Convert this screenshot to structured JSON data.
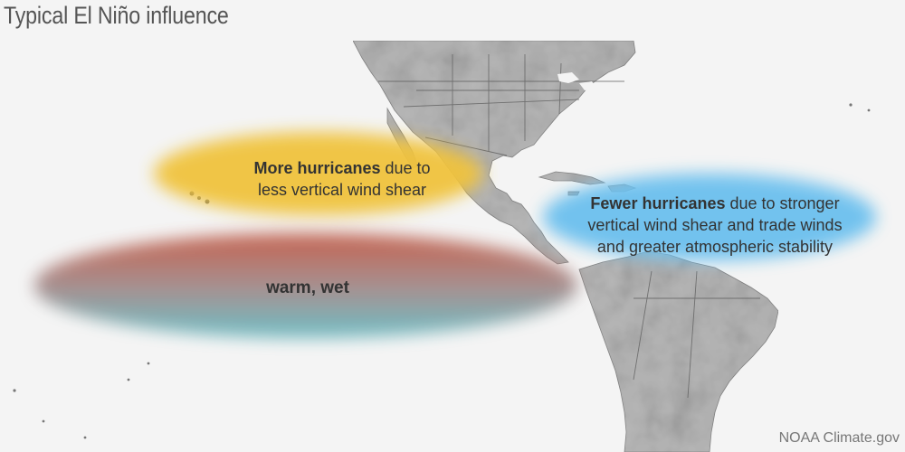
{
  "title": "Typical El Niño influence",
  "credit": "NOAA Climate.gov",
  "regions": {
    "more_hurricanes": {
      "bold": "More hurricanes",
      "line1_rest": " due to",
      "line2": "less vertical wind shear",
      "color": "#f0c33c"
    },
    "fewer_hurricanes": {
      "bold": "Fewer hurricanes",
      "line1_rest": " due to stronger",
      "line2": "vertical wind shear and trade winds",
      "line3": "and greater atmospheric stability",
      "color": "#6cc0ee"
    },
    "warm_wet": {
      "label": "warm, wet",
      "color_top": "#c0604d",
      "color_bottom": "#6fb7be"
    }
  },
  "colors": {
    "background": "#f4f4f4",
    "land_light": "#c4c4c4",
    "land_dark": "#8c8c8c",
    "border": "#555555",
    "text": "#333333"
  }
}
